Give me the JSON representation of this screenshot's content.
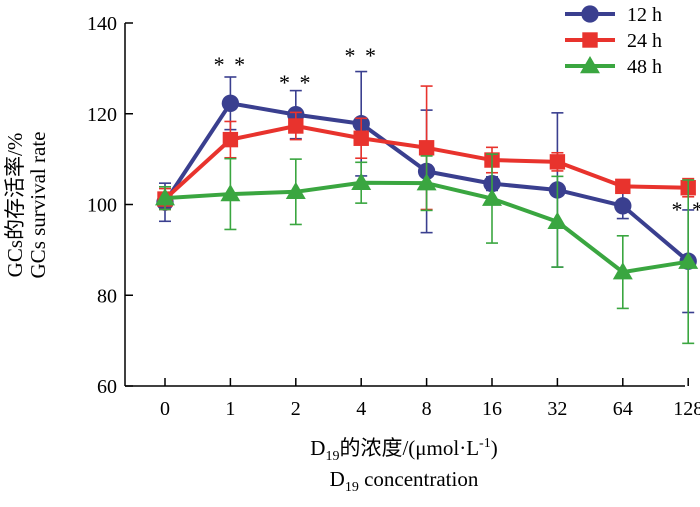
{
  "chart_data": {
    "type": "line",
    "categories": [
      "0",
      "1",
      "2",
      "4",
      "8",
      "16",
      "32",
      "64",
      "128"
    ],
    "series": [
      {
        "name": "12 h",
        "color": "#3a3f8f",
        "marker": "circle",
        "values": [
          100.5,
          122.3,
          119.8,
          117.8,
          107.3,
          104.6,
          103.2,
          99.7,
          87.5
        ],
        "errors": [
          4.2,
          5.8,
          5.3,
          11.5,
          13.5,
          1.5,
          17.0,
          2.8,
          11.3
        ]
      },
      {
        "name": "24 h",
        "color": "#e8332d",
        "marker": "square",
        "values": [
          101.2,
          114.3,
          117.3,
          114.6,
          112.5,
          109.8,
          109.4,
          104.0,
          103.7
        ],
        "errors": [
          2.3,
          4.0,
          3.0,
          4.4,
          13.6,
          2.8,
          2.0,
          0.5,
          2.0
        ]
      },
      {
        "name": "48 h",
        "color": "#3aa640",
        "marker": "triangle",
        "values": [
          101.4,
          102.3,
          102.8,
          104.8,
          104.7,
          101.3,
          96.2,
          85.1,
          87.4
        ],
        "errors": [
          2.5,
          7.8,
          7.2,
          4.5,
          6.0,
          9.8,
          10.0,
          8.0,
          18.0
        ]
      }
    ],
    "ylim": [
      60,
      140
    ],
    "yticks": [
      60,
      80,
      100,
      120,
      140
    ],
    "significance": [
      {
        "category": "1",
        "label": "**",
        "y": 131
      },
      {
        "category": "2",
        "label": "**",
        "y": 127
      },
      {
        "category": "4",
        "label": "**",
        "y": 133
      },
      {
        "category": "128",
        "label": "**",
        "y": 99
      }
    ],
    "ylabel_cn": "GCs的存活率/%",
    "ylabel_en": "GCs survival rate",
    "xlabel_cn": {
      "prefix": "D",
      "sub": "19",
      "text": "的浓度/(μmol·L",
      "sup": "-1",
      "suffix": ")"
    },
    "xlabel_en": {
      "prefix": "D",
      "sub": "19",
      "text": " concentration"
    },
    "legend_position": "top-right"
  }
}
